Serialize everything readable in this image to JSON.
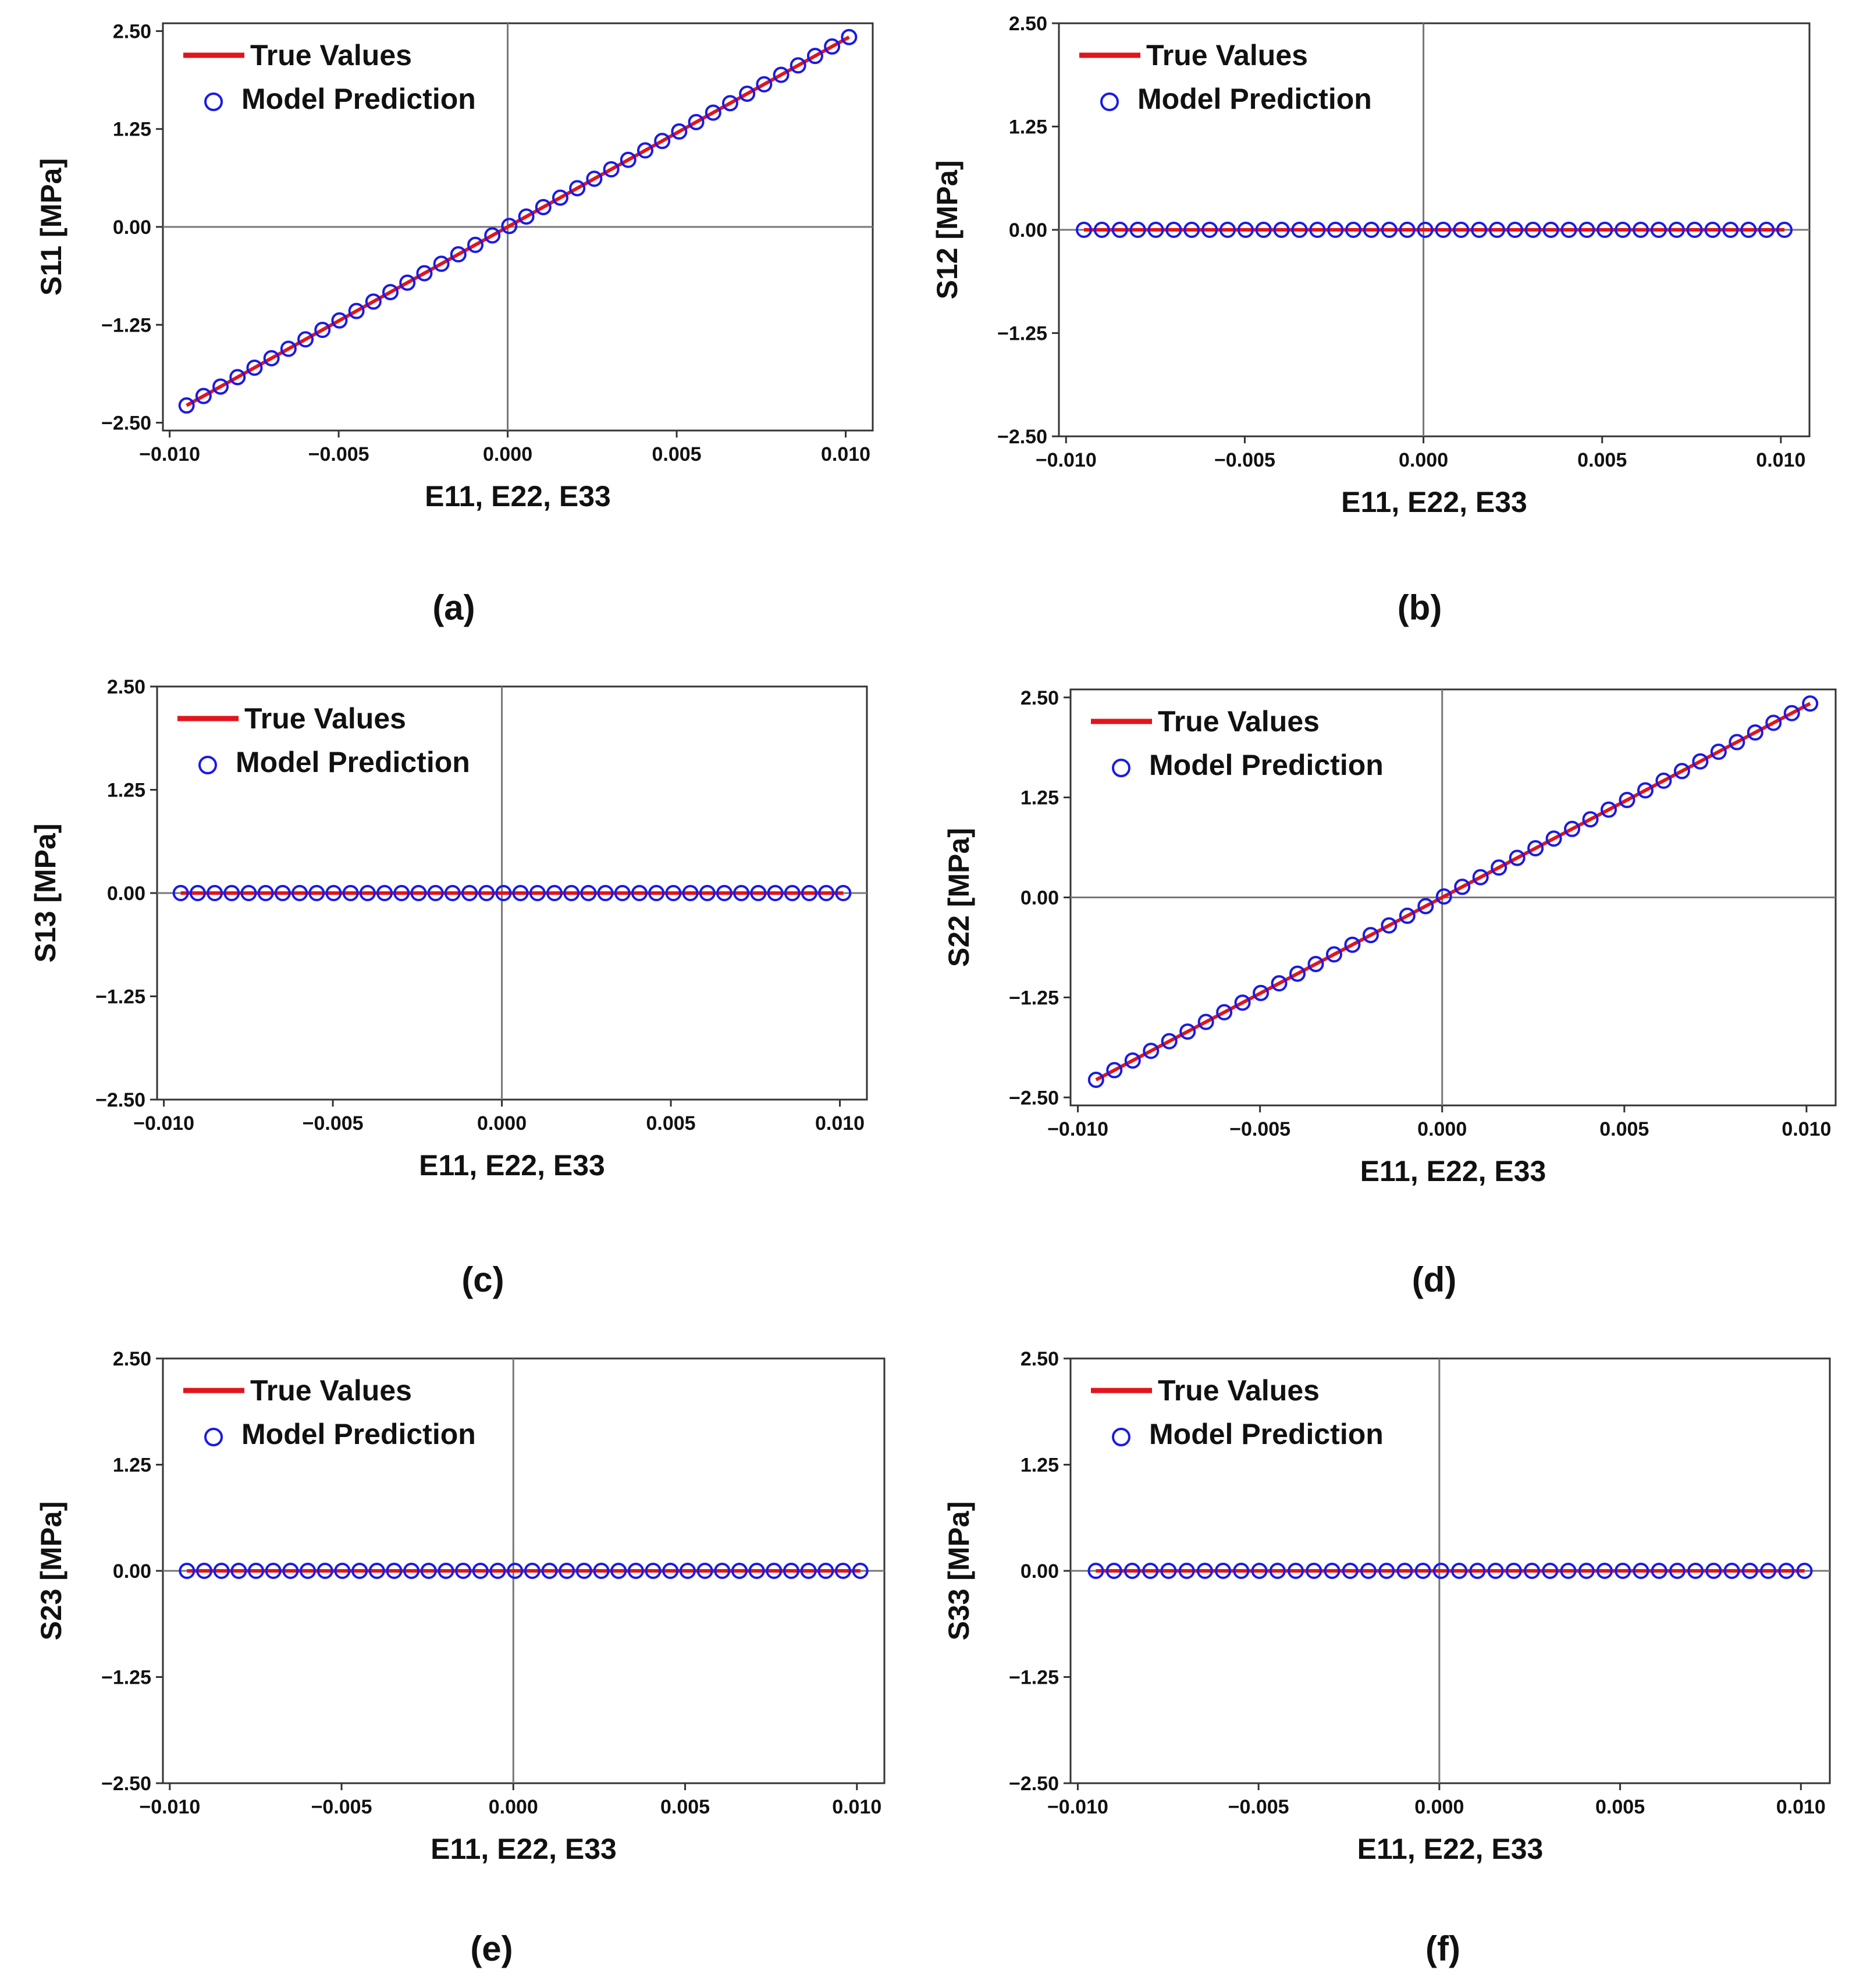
{
  "colors": {
    "true_line": "#e3141b",
    "prediction": "#1a1ae6",
    "axis": "#333333",
    "zero_line": "#777777"
  },
  "chart_data": [
    {
      "id": "a",
      "caption": "(a)",
      "type": "line",
      "xlabel": "E11, E22, E33",
      "ylabel": "S11 [MPa]",
      "xlim": [
        -0.0102,
        0.0108
      ],
      "ylim": [
        -2.6,
        2.6
      ],
      "xticks": [
        -0.01,
        -0.005,
        0.0,
        0.005,
        0.01
      ],
      "xtick_labels": [
        "−0.010",
        "−0.005",
        "0.000",
        "0.005",
        "0.010"
      ],
      "yticks": [
        2.5,
        1.25,
        0.0,
        -1.25,
        -2.5
      ],
      "ytick_labels": [
        "2.50",
        "1.25",
        "0.00",
        "−1.25",
        "−2.50"
      ],
      "legend": [
        "True Values",
        "Model Prediction"
      ],
      "series": [
        {
          "name": "True Values",
          "x_start": -0.0095,
          "x_end": 0.0101,
          "points": 40,
          "slope": 240
        },
        {
          "name": "Model Prediction",
          "x_start": -0.0095,
          "x_end": 0.0101,
          "points": 40,
          "slope": 240
        }
      ]
    },
    {
      "id": "b",
      "caption": "(b)",
      "type": "line",
      "xlabel": "E11, E22, E33",
      "ylabel": "S12 [MPa]",
      "xlim": [
        -0.0102,
        0.0108
      ],
      "ylim": [
        -2.5,
        2.5
      ],
      "xticks": [
        -0.01,
        -0.005,
        0.0,
        0.005,
        0.01
      ],
      "xtick_labels": [
        "−0.010",
        "−0.005",
        "0.000",
        "0.005",
        "0.010"
      ],
      "yticks": [
        2.5,
        1.25,
        0.0,
        -1.25,
        -2.5
      ],
      "ytick_labels": [
        "2.50",
        "1.25",
        "0.00",
        "−1.25",
        "−2.50"
      ],
      "legend": [
        "True Values",
        "Model Prediction"
      ],
      "series": [
        {
          "name": "True Values",
          "x_start": -0.0095,
          "x_end": 0.0101,
          "points": 40,
          "slope": 0
        },
        {
          "name": "Model Prediction",
          "x_start": -0.0095,
          "x_end": 0.0101,
          "points": 40,
          "slope": 0
        }
      ]
    },
    {
      "id": "c",
      "caption": "(c)",
      "type": "line",
      "xlabel": "E11, E22, E33",
      "ylabel": "S13 [MPa]",
      "xlim": [
        -0.0102,
        0.0108
      ],
      "ylim": [
        -2.5,
        2.5
      ],
      "xticks": [
        -0.01,
        -0.005,
        0.0,
        0.005,
        0.01
      ],
      "xtick_labels": [
        "−0.010",
        "−0.005",
        "0.000",
        "0.005",
        "0.010"
      ],
      "yticks": [
        2.5,
        1.25,
        0.0,
        -1.25,
        -2.5
      ],
      "ytick_labels": [
        "2.50",
        "1.25",
        "0.00",
        "−1.25",
        "−2.50"
      ],
      "legend": [
        "True Values",
        "Model Prediction"
      ],
      "series": [
        {
          "name": "True Values",
          "x_start": -0.0095,
          "x_end": 0.0101,
          "points": 40,
          "slope": 0
        },
        {
          "name": "Model Prediction",
          "x_start": -0.0095,
          "x_end": 0.0101,
          "points": 40,
          "slope": 0
        }
      ]
    },
    {
      "id": "d",
      "caption": "(d)",
      "type": "line",
      "xlabel": "E11, E22, E33",
      "ylabel": "S22 [MPa]",
      "xlim": [
        -0.0102,
        0.0108
      ],
      "ylim": [
        -2.6,
        2.6
      ],
      "xticks": [
        -0.01,
        -0.005,
        0.0,
        0.005,
        0.01
      ],
      "xtick_labels": [
        "−0.010",
        "−0.005",
        "0.000",
        "0.005",
        "0.010"
      ],
      "yticks": [
        2.5,
        1.25,
        0.0,
        -1.25,
        -2.5
      ],
      "ytick_labels": [
        "2.50",
        "1.25",
        "0.00",
        "−1.25",
        "−2.50"
      ],
      "legend": [
        "True Values",
        "Model Prediction"
      ],
      "series": [
        {
          "name": "True Values",
          "x_start": -0.0095,
          "x_end": 0.0101,
          "points": 40,
          "slope": 240
        },
        {
          "name": "Model Prediction",
          "x_start": -0.0095,
          "x_end": 0.0101,
          "points": 40,
          "slope": 240
        }
      ]
    },
    {
      "id": "e",
      "caption": "(e)",
      "type": "line",
      "xlabel": "E11, E22, E33",
      "ylabel": "S23 [MPa]",
      "xlim": [
        -0.0102,
        0.0108
      ],
      "ylim": [
        -2.5,
        2.5
      ],
      "xticks": [
        -0.01,
        -0.005,
        0.0,
        0.005,
        0.01
      ],
      "xtick_labels": [
        "−0.010",
        "−0.005",
        "0.000",
        "0.005",
        "0.010"
      ],
      "yticks": [
        2.5,
        1.25,
        0.0,
        -1.25,
        -2.5
      ],
      "ytick_labels": [
        "2.50",
        "1.25",
        "0.00",
        "−1.25",
        "−2.50"
      ],
      "legend": [
        "True Values",
        "Model Prediction"
      ],
      "series": [
        {
          "name": "True Values",
          "x_start": -0.0095,
          "x_end": 0.0101,
          "points": 40,
          "slope": 0
        },
        {
          "name": "Model Prediction",
          "x_start": -0.0095,
          "x_end": 0.0101,
          "points": 40,
          "slope": 0
        }
      ]
    },
    {
      "id": "f",
      "caption": "(f)",
      "type": "line",
      "xlabel": "E11, E22, E33",
      "ylabel": "S33 [MPa]",
      "xlim": [
        -0.0102,
        0.0108
      ],
      "ylim": [
        -2.5,
        2.5
      ],
      "xticks": [
        -0.01,
        -0.005,
        0.0,
        0.005,
        0.01
      ],
      "xtick_labels": [
        "−0.010",
        "−0.005",
        "0.000",
        "0.005",
        "0.010"
      ],
      "yticks": [
        2.5,
        1.25,
        0.0,
        -1.25,
        -2.5
      ],
      "ytick_labels": [
        "2.50",
        "1.25",
        "0.00",
        "−1.25",
        "−2.50"
      ],
      "legend": [
        "True Values",
        "Model Prediction"
      ],
      "series": [
        {
          "name": "True Values",
          "x_start": -0.0095,
          "x_end": 0.0101,
          "points": 40,
          "slope": 0
        },
        {
          "name": "Model Prediction",
          "x_start": -0.0095,
          "x_end": 0.0101,
          "points": 40,
          "slope": 0
        }
      ]
    }
  ]
}
